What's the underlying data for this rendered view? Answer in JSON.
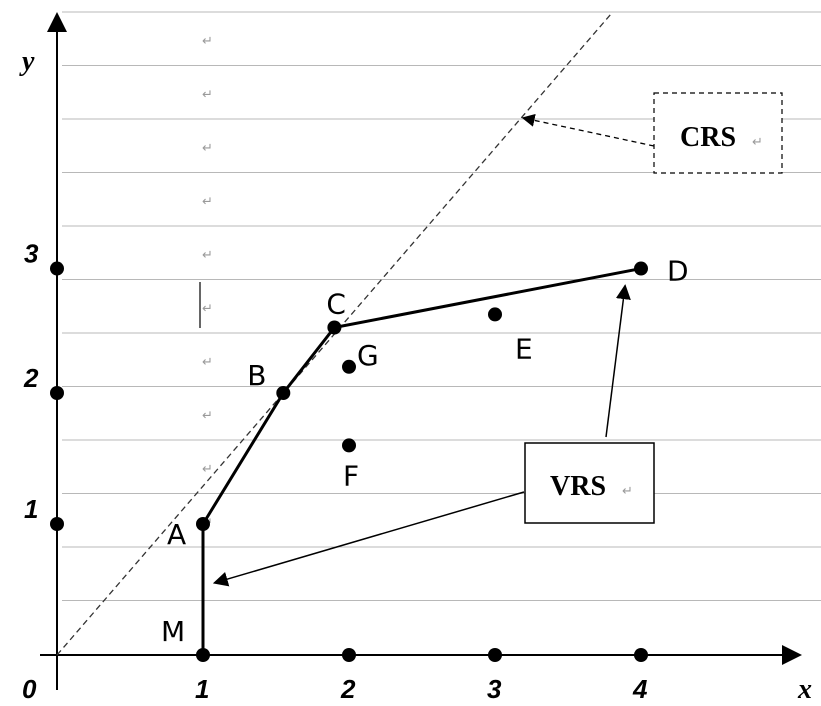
{
  "axes": {
    "x_label": "x",
    "y_label": "y",
    "origin_label": "0"
  },
  "chart_data": {
    "type": "scatter",
    "x_ticks": [
      "1",
      "2",
      "3",
      "4"
    ],
    "y_ticks": [
      "1",
      "2",
      "3"
    ],
    "xlim": [
      0,
      4.9
    ],
    "ylim": [
      0,
      4.9
    ],
    "points": [
      {
        "name": "M",
        "x": 1.0,
        "y": 0.0
      },
      {
        "name": "A",
        "x": 1.0,
        "y": 1.0
      },
      {
        "name": "B",
        "x": 1.55,
        "y": 2.0
      },
      {
        "name": "C",
        "x": 1.9,
        "y": 2.5
      },
      {
        "name": "D",
        "x": 4.0,
        "y": 2.95
      },
      {
        "name": "E",
        "x": 3.0,
        "y": 2.6
      },
      {
        "name": "F",
        "x": 2.0,
        "y": 1.6
      },
      {
        "name": "G",
        "x": 2.0,
        "y": 2.2
      }
    ],
    "frontier_path": [
      "M",
      "A",
      "B",
      "C",
      "D"
    ],
    "crs_line": {
      "from": [
        0,
        0
      ],
      "to": [
        3.8,
        4.9
      ]
    },
    "annotations": [
      {
        "label": "CRS",
        "target": [
          3.15,
          4.1
        ]
      },
      {
        "label": "VRS",
        "target": [
          3.85,
          2.85
        ]
      },
      {
        "label": "VRS",
        "target": [
          1.05,
          0.55
        ]
      }
    ]
  },
  "boxes": {
    "crs": "CRS",
    "vrs": "VRS"
  },
  "para_mark": "↵"
}
